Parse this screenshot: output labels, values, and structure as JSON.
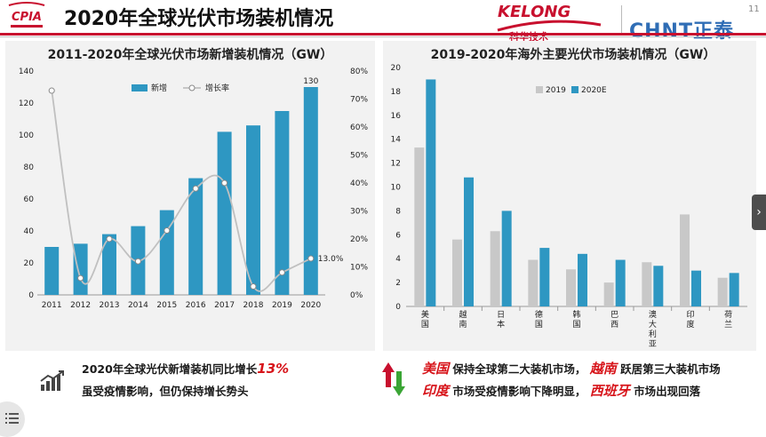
{
  "header": {
    "logo_text": "CPIA",
    "title": "2020年全球光伏市场装机情况",
    "kelong_logo": "KELONG",
    "kelong_sub": "科华技术",
    "chnt_logo": "CHNT正泰",
    "page_number": "11"
  },
  "colors": {
    "bar_blue": "#2e97c2",
    "bar_gray": "#c8c8c8",
    "line_gray": "#c0c0c0",
    "highlight_red": "#d7141a"
  },
  "chart_data": [
    {
      "type": "bar",
      "title": "2011-2020年全球光伏市场新增装机情况（GW）",
      "categories": [
        "2011",
        "2012",
        "2013",
        "2014",
        "2015",
        "2016",
        "2017",
        "2018",
        "2019",
        "2020"
      ],
      "series": [
        {
          "name": "新增",
          "axis": "left",
          "type": "bar",
          "values": [
            30,
            32,
            38,
            43,
            53,
            73,
            102,
            106,
            115,
            130
          ]
        },
        {
          "name": "增长率",
          "axis": "right",
          "type": "line",
          "values": [
            73,
            6,
            20,
            12,
            23,
            38,
            40,
            3,
            8,
            13
          ]
        }
      ],
      "ylim": [
        0,
        140
      ],
      "y_ticks": [
        "0",
        "20",
        "40",
        "60",
        "80",
        "100",
        "120",
        "140"
      ],
      "y2lim": [
        0,
        80
      ],
      "y2_ticks": [
        "0%",
        "10%",
        "20%",
        "30%",
        "40%",
        "50%",
        "60%",
        "70%",
        "80%"
      ],
      "data_labels": {
        "bar_last": "130",
        "line_last": "13.0%"
      },
      "legend_position": "top-center",
      "grid": false
    },
    {
      "type": "bar",
      "title": "2019-2020年海外主要光伏市场装机情况（GW）",
      "categories": [
        "美国",
        "越南",
        "日本",
        "德国",
        "韩国",
        "巴西",
        "澳大利亚",
        "印度",
        "荷兰"
      ],
      "series": [
        {
          "name": "2019",
          "values": [
            13.3,
            5.6,
            6.3,
            3.9,
            3.1,
            2.0,
            3.7,
            7.7,
            2.4
          ]
        },
        {
          "name": "2020E",
          "values": [
            19.0,
            10.8,
            8.0,
            4.9,
            4.4,
            3.9,
            3.4,
            3.0,
            2.8
          ]
        }
      ],
      "ylim": [
        0,
        20
      ],
      "y_ticks": [
        "0",
        "2",
        "4",
        "6",
        "8",
        "10",
        "12",
        "14",
        "16",
        "18",
        "20"
      ],
      "legend_position": "top-left",
      "grid": false
    }
  ],
  "notes_left": {
    "line1_prefix": "2020年全球光伏新增装机同比增长",
    "line1_highlight": "13%",
    "line2": "虽受疫情影响，但仍保持增长势头"
  },
  "notes_right": {
    "line1_h1": "美国",
    "line1_t1": "保持全球第二大装机市场，",
    "line1_h2": "越南",
    "line1_t2": "跃居第三大装机市场",
    "line2_h1": "印度",
    "line2_t1": "市场受疫情影响下降明显，",
    "line2_h2": "西班牙",
    "line2_t2": "市场出现回落"
  },
  "nav": {
    "next_arrow": "›"
  }
}
